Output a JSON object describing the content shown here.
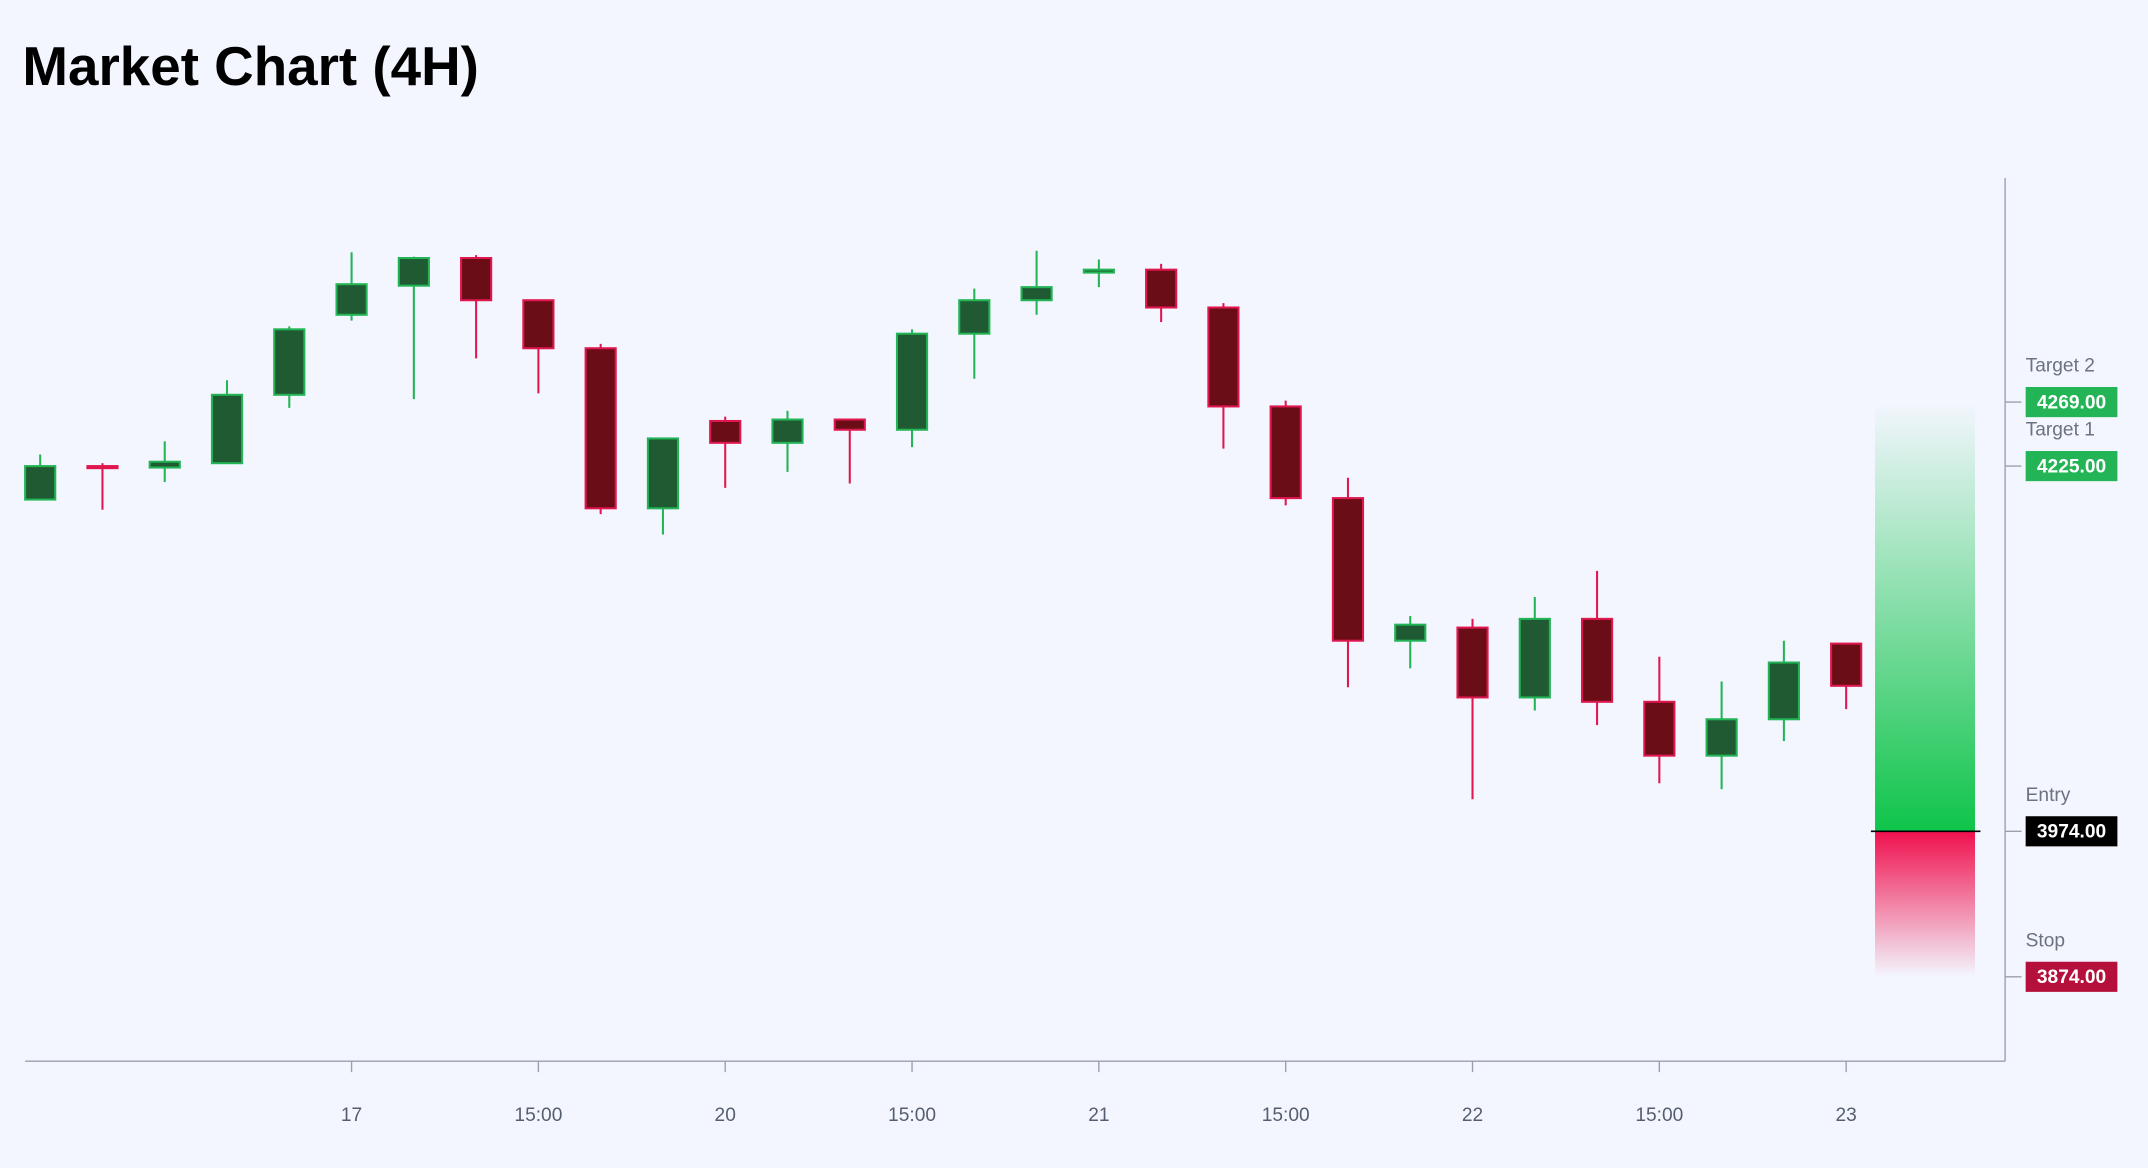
{
  "chart_data": {
    "type": "candlestick",
    "title": "Market Chart (4H)",
    "categories": [
      null,
      null,
      null,
      null,
      null,
      "17",
      null,
      null,
      "15:00",
      null,
      null,
      "20",
      null,
      null,
      "15:00",
      null,
      null,
      "21",
      null,
      null,
      "15:00",
      null,
      null,
      "22",
      null,
      null,
      "15:00",
      null,
      null,
      "23"
    ],
    "open": [
      4202,
      4225,
      4224,
      4227,
      4274,
      4329,
      4349,
      4368,
      4339,
      4306,
      4196,
      4256,
      4241,
      4257,
      4250,
      4316,
      4339,
      4358,
      4360,
      4334,
      4266,
      4203,
      4105,
      4114,
      4066,
      4120,
      4063,
      4026,
      4051,
      4103
    ],
    "high": [
      4233,
      4227,
      4242,
      4284,
      4321,
      4372,
      4369,
      4370,
      4339,
      4309,
      4244,
      4259,
      4263,
      4257,
      4319,
      4347,
      4373,
      4367,
      4364,
      4337,
      4270,
      4217,
      4122,
      4120,
      4135,
      4153,
      4094,
      4077,
      4105,
      4103
    ],
    "low": [
      4202,
      4195,
      4214,
      4227,
      4265,
      4325,
      4271,
      4299,
      4275,
      4192,
      4178,
      4210,
      4221,
      4213,
      4238,
      4285,
      4329,
      4348,
      4324,
      4237,
      4198,
      4073,
      4086,
      3996,
      4057,
      4047,
      4007,
      4003,
      4036,
      4058
    ],
    "close": [
      4225,
      4224,
      4228,
      4274,
      4319,
      4350,
      4368,
      4339,
      4306,
      4196,
      4244,
      4241,
      4257,
      4250,
      4316,
      4339,
      4348,
      4360,
      4334,
      4266,
      4203,
      4105,
      4116,
      4066,
      4120,
      4063,
      4026,
      4051,
      4090,
      4074
    ],
    "up_color": "#22b455",
    "up_fill": "#1f5a32",
    "down_color": "#e0174f",
    "down_fill": "#6a0d16",
    "ylim": [
      3816,
      4423
    ],
    "levels": [
      {
        "name": "Target 2",
        "value": 4269,
        "label": "4269.00",
        "color": "#22b455"
      },
      {
        "name": "Target 1",
        "value": 4225,
        "label": "4225.00",
        "color": "#22b455"
      },
      {
        "name": "Entry",
        "value": 3974,
        "label": "3974.00",
        "color": "#000000"
      },
      {
        "name": "Stop",
        "value": 3874,
        "label": "3874.00",
        "color": "#b5103c"
      }
    ]
  }
}
